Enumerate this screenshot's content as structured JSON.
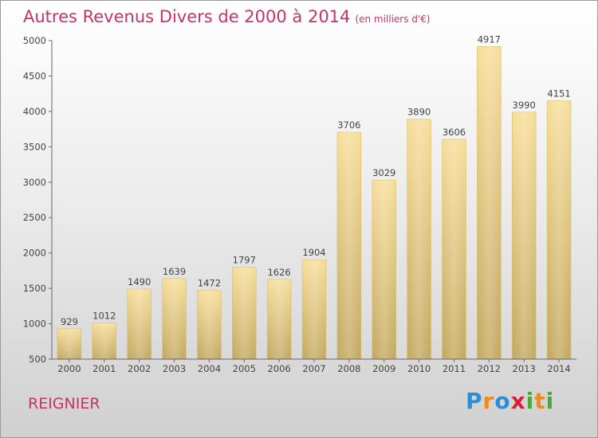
{
  "chart_data": {
    "type": "bar",
    "title": "Autres Revenus Divers de 2000 à 2014",
    "subtitle": "(en milliers d'€)",
    "categories": [
      "2000",
      "2001",
      "2002",
      "2003",
      "2004",
      "2005",
      "2006",
      "2007",
      "2008",
      "2009",
      "2010",
      "2011",
      "2012",
      "2013",
      "2014"
    ],
    "values": [
      929,
      1012,
      1490,
      1639,
      1472,
      1797,
      1626,
      1904,
      3706,
      3029,
      3890,
      3606,
      4917,
      3990,
      4151
    ],
    "ylim": [
      500,
      5000
    ],
    "yticks": [
      500,
      1000,
      1500,
      2000,
      2500,
      3000,
      3500,
      4000,
      4500,
      5000
    ],
    "grid": false,
    "bar_color": "#e6c670"
  },
  "footer": {
    "commune": "REIGNIER",
    "logo_letters": [
      {
        "ch": "P",
        "color": "#2a8fd6"
      },
      {
        "ch": "r",
        "color": "#f08a1c"
      },
      {
        "ch": "o",
        "color": "#2a8fd6"
      },
      {
        "ch": "x",
        "color": "#d6203a"
      },
      {
        "ch": "i",
        "color": "#4aa83a"
      },
      {
        "ch": "t",
        "color": "#f08a1c"
      },
      {
        "ch": "i",
        "color": "#4aa83a"
      }
    ]
  }
}
